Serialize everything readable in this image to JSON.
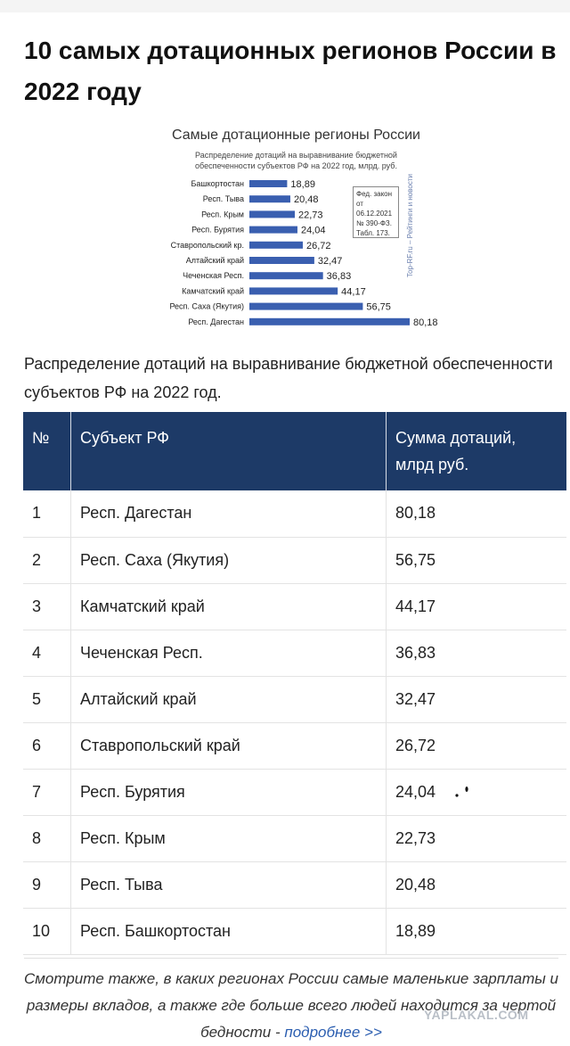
{
  "article": {
    "title": "10 самых дотационных регионов России в 2022 году",
    "intro": "Распределение дотаций на выравнивание бюджетной обеспеченности субъектов РФ на 2022 год."
  },
  "chart_data": {
    "type": "bar",
    "orientation": "horizontal",
    "title": "Самые дотационные регионы России",
    "subtitle_line1": "Распределение дотаций на выравнивание бюджетной",
    "subtitle_line2": "обеспеченности субъектов РФ на 2022 год, млрд. руб.",
    "categories": [
      "Башкортостан",
      "Респ. Тыва",
      "Респ. Крым",
      "Респ. Бурятия",
      "Ставропольский кр.",
      "Алтайский край",
      "Чеченская Респ.",
      "Камчатский край",
      "Респ. Саха (Якутия)",
      "Респ. Дагестан"
    ],
    "values": [
      18.89,
      20.48,
      22.73,
      24.04,
      26.72,
      32.47,
      36.83,
      44.17,
      56.75,
      80.18
    ],
    "value_labels": [
      "18,89",
      "20,48",
      "22,73",
      "24,04",
      "26,72",
      "32,47",
      "36,83",
      "44,17",
      "56,75",
      "80,18"
    ],
    "bar_color": "#3a5fb0",
    "note": [
      "Фед. закон",
      "от 06.12.2021",
      "№ 390-ФЗ.",
      "Табл. 173."
    ],
    "source": "Top-RF.ru – Рейтинги и новости"
  },
  "table": {
    "headers": [
      "№",
      "Субъект РФ",
      "Сумма дотаций,\nмлрд руб."
    ],
    "rows": [
      [
        "1",
        "Респ. Дагестан",
        "80,18"
      ],
      [
        "2",
        "Респ. Саха (Якутия)",
        "56,75"
      ],
      [
        "3",
        "Камчатский край",
        "44,17"
      ],
      [
        "4",
        "Чеченская Респ.",
        "36,83"
      ],
      [
        "5",
        "Алтайский край",
        "32,47"
      ],
      [
        "6",
        "Ставропольский край",
        "26,72"
      ],
      [
        "7",
        "Респ. Бурятия",
        "24,04"
      ],
      [
        "8",
        "Респ. Крым",
        "22,73"
      ],
      [
        "9",
        "Респ. Тыва",
        "20,48"
      ],
      [
        "10",
        "Респ. Башкортостан",
        "18,89"
      ]
    ]
  },
  "footer": {
    "text": "Смотрите также, в каких регионах России самые маленькие зарплаты и размеры вкладов, а также где больше всего людей находится за чертой бедности - ",
    "link": "подробнее >>"
  },
  "watermark": "YAPLAKAL.COM",
  "colors": {
    "header_bg": "#1d3a67",
    "link": "#2a5db0"
  }
}
